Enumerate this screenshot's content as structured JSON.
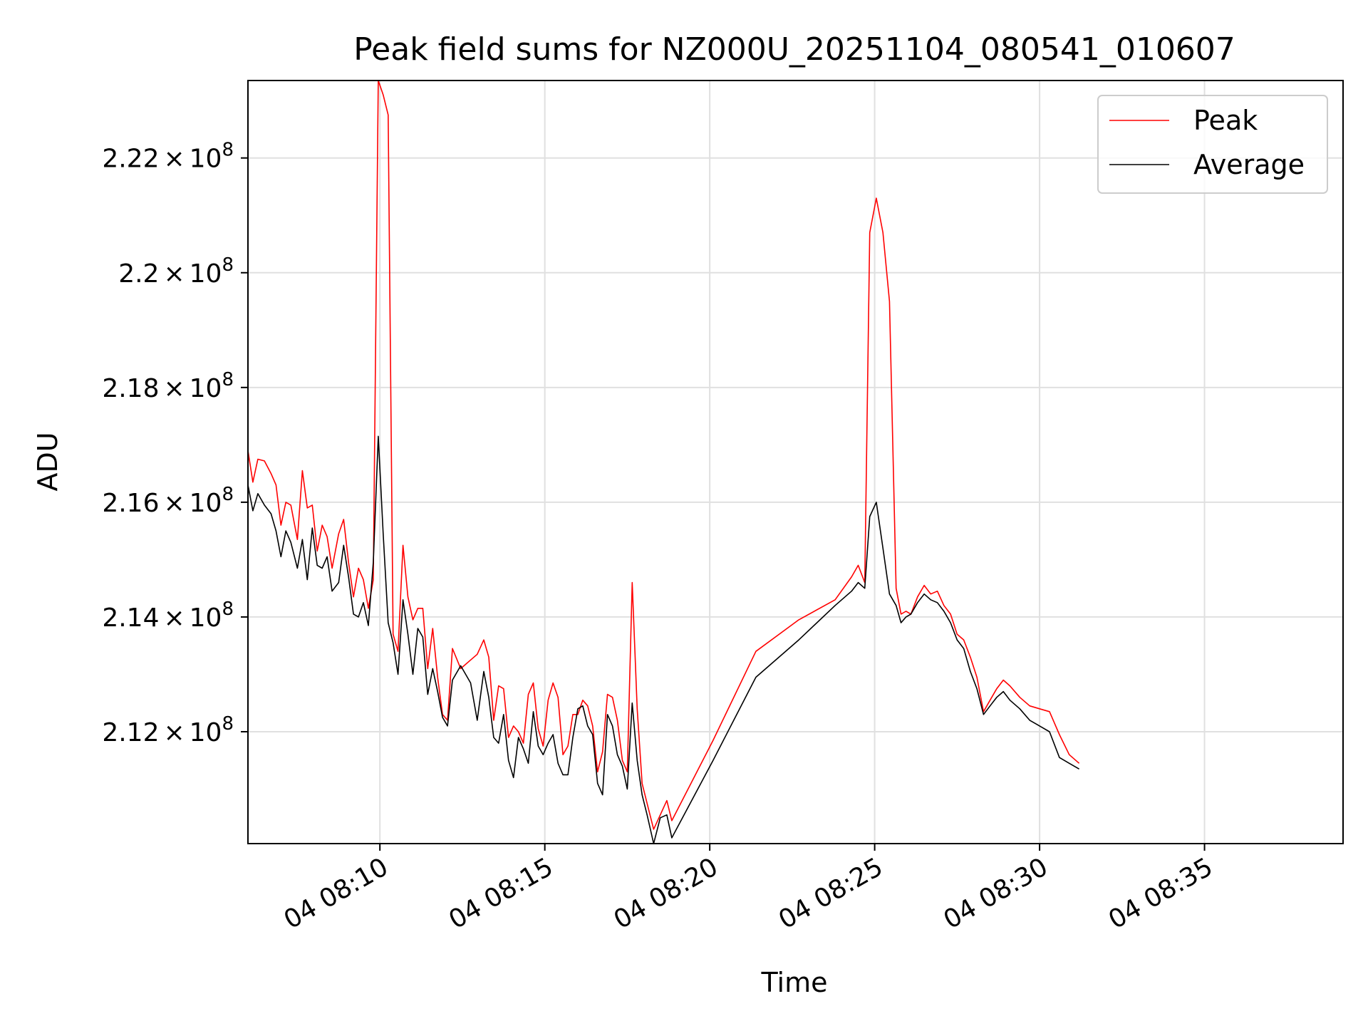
{
  "chart_data": {
    "type": "line",
    "title": "Peak field sums for NZ000U_20251104_080541_010607",
    "xlabel": "Time",
    "ylabel": "ADU",
    "x_unit": "minutes after 08:00 on day 04",
    "xlim": [
      6.0,
      39.2
    ],
    "ylim": [
      210050000,
      223350000
    ],
    "grid": true,
    "legend_position": "top-right",
    "x_ticks": [
      {
        "value": 10,
        "label": "04 08:10"
      },
      {
        "value": 15,
        "label": "04 08:15"
      },
      {
        "value": 20,
        "label": "04 08:20"
      },
      {
        "value": 25,
        "label": "04 08:25"
      },
      {
        "value": 30,
        "label": "04 08:30"
      },
      {
        "value": 35,
        "label": "04 08:35"
      }
    ],
    "y_ticks": [
      {
        "value": 212000000,
        "mantissa": "2.12",
        "times": "×",
        "base": "10",
        "exp": "8"
      },
      {
        "value": 214000000,
        "mantissa": "2.14",
        "times": "×",
        "base": "10",
        "exp": "8"
      },
      {
        "value": 216000000,
        "mantissa": "2.16",
        "times": "×",
        "base": "10",
        "exp": "8"
      },
      {
        "value": 218000000,
        "mantissa": "2.18",
        "times": "×",
        "base": "10",
        "exp": "8"
      },
      {
        "value": 220000000,
        "mantissa": "2.2",
        "times": "×",
        "base": "10",
        "exp": "8"
      },
      {
        "value": 222000000,
        "mantissa": "2.22",
        "times": "×",
        "base": "10",
        "exp": "8"
      }
    ],
    "series": [
      {
        "name": "Peak",
        "color": "#ff0000",
        "points": [
          [
            6.0,
            216900000
          ],
          [
            6.15,
            216350000
          ],
          [
            6.3,
            216750000
          ],
          [
            6.5,
            216720000
          ],
          [
            6.7,
            216500000
          ],
          [
            6.85,
            216300000
          ],
          [
            7.0,
            215600000
          ],
          [
            7.15,
            216000000
          ],
          [
            7.3,
            215950000
          ],
          [
            7.5,
            215350000
          ],
          [
            7.65,
            216550000
          ],
          [
            7.8,
            215900000
          ],
          [
            7.95,
            215950000
          ],
          [
            8.1,
            215150000
          ],
          [
            8.25,
            215600000
          ],
          [
            8.4,
            215400000
          ],
          [
            8.55,
            214850000
          ],
          [
            8.75,
            215450000
          ],
          [
            8.9,
            215700000
          ],
          [
            9.05,
            214950000
          ],
          [
            9.2,
            214350000
          ],
          [
            9.35,
            214850000
          ],
          [
            9.5,
            214650000
          ],
          [
            9.65,
            214150000
          ],
          [
            9.8,
            214650000
          ],
          [
            9.95,
            223350000
          ],
          [
            10.1,
            223100000
          ],
          [
            10.25,
            222750000
          ],
          [
            10.4,
            213700000
          ],
          [
            10.55,
            213400000
          ],
          [
            10.7,
            215250000
          ],
          [
            10.85,
            214350000
          ],
          [
            11.0,
            213950000
          ],
          [
            11.15,
            214150000
          ],
          [
            11.3,
            214150000
          ],
          [
            11.45,
            213100000
          ],
          [
            11.6,
            213800000
          ],
          [
            11.75,
            212950000
          ],
          [
            11.9,
            212300000
          ],
          [
            12.05,
            212200000
          ],
          [
            12.2,
            213450000
          ],
          [
            12.45,
            213100000
          ],
          [
            12.75,
            213250000
          ],
          [
            12.95,
            213350000
          ],
          [
            13.15,
            213600000
          ],
          [
            13.3,
            213300000
          ],
          [
            13.45,
            212200000
          ],
          [
            13.6,
            212800000
          ],
          [
            13.75,
            212750000
          ],
          [
            13.9,
            211900000
          ],
          [
            14.05,
            212100000
          ],
          [
            14.2,
            212000000
          ],
          [
            14.35,
            211800000
          ],
          [
            14.5,
            212650000
          ],
          [
            14.65,
            212850000
          ],
          [
            14.8,
            212050000
          ],
          [
            14.95,
            211750000
          ],
          [
            15.1,
            212550000
          ],
          [
            15.25,
            212850000
          ],
          [
            15.4,
            212600000
          ],
          [
            15.55,
            211600000
          ],
          [
            15.7,
            211750000
          ],
          [
            15.85,
            212300000
          ],
          [
            16.0,
            212300000
          ],
          [
            16.15,
            212550000
          ],
          [
            16.3,
            212450000
          ],
          [
            16.45,
            212100000
          ],
          [
            16.6,
            211300000
          ],
          [
            16.75,
            211650000
          ],
          [
            16.9,
            212650000
          ],
          [
            17.05,
            212600000
          ],
          [
            17.2,
            212200000
          ],
          [
            17.35,
            211500000
          ],
          [
            17.5,
            211300000
          ],
          [
            17.65,
            214600000
          ],
          [
            17.8,
            212400000
          ],
          [
            17.95,
            211100000
          ],
          [
            18.1,
            210750000
          ],
          [
            18.3,
            210300000
          ],
          [
            18.5,
            210550000
          ],
          [
            18.7,
            210800000
          ],
          [
            18.85,
            210450000
          ],
          [
            20.1,
            211850000
          ],
          [
            21.4,
            213400000
          ],
          [
            22.7,
            213950000
          ],
          [
            23.8,
            214300000
          ],
          [
            24.3,
            214700000
          ],
          [
            24.5,
            214900000
          ],
          [
            24.7,
            214600000
          ],
          [
            24.85,
            220700000
          ],
          [
            25.05,
            221300000
          ],
          [
            25.25,
            220700000
          ],
          [
            25.45,
            219500000
          ],
          [
            25.65,
            214500000
          ],
          [
            25.8,
            214050000
          ],
          [
            25.95,
            214100000
          ],
          [
            26.1,
            214050000
          ],
          [
            26.3,
            214350000
          ],
          [
            26.5,
            214550000
          ],
          [
            26.7,
            214400000
          ],
          [
            26.9,
            214450000
          ],
          [
            27.1,
            214200000
          ],
          [
            27.3,
            214050000
          ],
          [
            27.5,
            213700000
          ],
          [
            27.7,
            213600000
          ],
          [
            27.9,
            213300000
          ],
          [
            28.1,
            212950000
          ],
          [
            28.3,
            212350000
          ],
          [
            28.5,
            212550000
          ],
          [
            28.7,
            212750000
          ],
          [
            28.9,
            212900000
          ],
          [
            29.1,
            212800000
          ],
          [
            29.4,
            212600000
          ],
          [
            29.7,
            212450000
          ],
          [
            30.0,
            212400000
          ],
          [
            30.3,
            212350000
          ],
          [
            30.6,
            211950000
          ],
          [
            30.9,
            211600000
          ],
          [
            31.2,
            211450000
          ]
        ]
      },
      {
        "name": "Average",
        "color": "#000000",
        "points": [
          [
            6.0,
            216300000
          ],
          [
            6.15,
            215850000
          ],
          [
            6.3,
            216150000
          ],
          [
            6.5,
            215950000
          ],
          [
            6.7,
            215800000
          ],
          [
            6.85,
            215500000
          ],
          [
            7.0,
            215050000
          ],
          [
            7.15,
            215500000
          ],
          [
            7.3,
            215300000
          ],
          [
            7.5,
            214850000
          ],
          [
            7.65,
            215350000
          ],
          [
            7.8,
            214650000
          ],
          [
            7.95,
            215550000
          ],
          [
            8.1,
            214900000
          ],
          [
            8.25,
            214850000
          ],
          [
            8.4,
            215050000
          ],
          [
            8.55,
            214450000
          ],
          [
            8.75,
            214600000
          ],
          [
            8.9,
            215250000
          ],
          [
            9.05,
            214700000
          ],
          [
            9.2,
            214050000
          ],
          [
            9.35,
            214000000
          ],
          [
            9.5,
            214250000
          ],
          [
            9.65,
            213850000
          ],
          [
            9.8,
            214950000
          ],
          [
            9.95,
            217150000
          ],
          [
            10.1,
            215450000
          ],
          [
            10.25,
            213900000
          ],
          [
            10.4,
            213550000
          ],
          [
            10.55,
            213000000
          ],
          [
            10.7,
            214300000
          ],
          [
            10.85,
            213700000
          ],
          [
            11.0,
            213000000
          ],
          [
            11.15,
            213800000
          ],
          [
            11.3,
            213650000
          ],
          [
            11.45,
            212650000
          ],
          [
            11.6,
            213100000
          ],
          [
            11.75,
            212700000
          ],
          [
            11.9,
            212250000
          ],
          [
            12.05,
            212100000
          ],
          [
            12.2,
            212900000
          ],
          [
            12.45,
            213150000
          ],
          [
            12.75,
            212850000
          ],
          [
            12.95,
            212200000
          ],
          [
            13.15,
            213050000
          ],
          [
            13.3,
            212600000
          ],
          [
            13.45,
            211900000
          ],
          [
            13.6,
            211800000
          ],
          [
            13.75,
            212300000
          ],
          [
            13.9,
            211500000
          ],
          [
            14.05,
            211200000
          ],
          [
            14.2,
            211900000
          ],
          [
            14.35,
            211700000
          ],
          [
            14.5,
            211450000
          ],
          [
            14.65,
            212350000
          ],
          [
            14.8,
            211750000
          ],
          [
            14.95,
            211600000
          ],
          [
            15.1,
            211800000
          ],
          [
            15.25,
            211950000
          ],
          [
            15.4,
            211450000
          ],
          [
            15.55,
            211250000
          ],
          [
            15.7,
            211250000
          ],
          [
            15.85,
            211900000
          ],
          [
            16.0,
            212400000
          ],
          [
            16.15,
            212450000
          ],
          [
            16.3,
            212100000
          ],
          [
            16.45,
            211950000
          ],
          [
            16.6,
            211100000
          ],
          [
            16.75,
            210900000
          ],
          [
            16.9,
            212300000
          ],
          [
            17.05,
            212100000
          ],
          [
            17.2,
            211600000
          ],
          [
            17.35,
            211400000
          ],
          [
            17.5,
            211000000
          ],
          [
            17.65,
            212500000
          ],
          [
            17.8,
            211500000
          ],
          [
            17.95,
            210900000
          ],
          [
            18.1,
            210550000
          ],
          [
            18.3,
            210050000
          ],
          [
            18.5,
            210500000
          ],
          [
            18.7,
            210550000
          ],
          [
            18.85,
            210150000
          ],
          [
            20.1,
            211500000
          ],
          [
            21.4,
            212950000
          ],
          [
            22.7,
            213600000
          ],
          [
            23.8,
            214200000
          ],
          [
            24.3,
            214450000
          ],
          [
            24.5,
            214600000
          ],
          [
            24.7,
            214500000
          ],
          [
            24.85,
            215750000
          ],
          [
            25.05,
            216000000
          ],
          [
            25.25,
            215200000
          ],
          [
            25.45,
            214400000
          ],
          [
            25.65,
            214200000
          ],
          [
            25.8,
            213900000
          ],
          [
            25.95,
            214000000
          ],
          [
            26.1,
            214050000
          ],
          [
            26.3,
            214250000
          ],
          [
            26.5,
            214400000
          ],
          [
            26.7,
            214300000
          ],
          [
            26.9,
            214250000
          ],
          [
            27.1,
            214100000
          ],
          [
            27.3,
            213900000
          ],
          [
            27.5,
            213600000
          ],
          [
            27.7,
            213450000
          ],
          [
            27.9,
            213050000
          ],
          [
            28.1,
            212750000
          ],
          [
            28.3,
            212300000
          ],
          [
            28.5,
            212450000
          ],
          [
            28.7,
            212600000
          ],
          [
            28.9,
            212700000
          ],
          [
            29.1,
            212550000
          ],
          [
            29.4,
            212400000
          ],
          [
            29.7,
            212200000
          ],
          [
            30.0,
            212100000
          ],
          [
            30.3,
            212000000
          ],
          [
            30.6,
            211550000
          ],
          [
            30.9,
            211450000
          ],
          [
            31.2,
            211350000
          ]
        ]
      }
    ]
  }
}
